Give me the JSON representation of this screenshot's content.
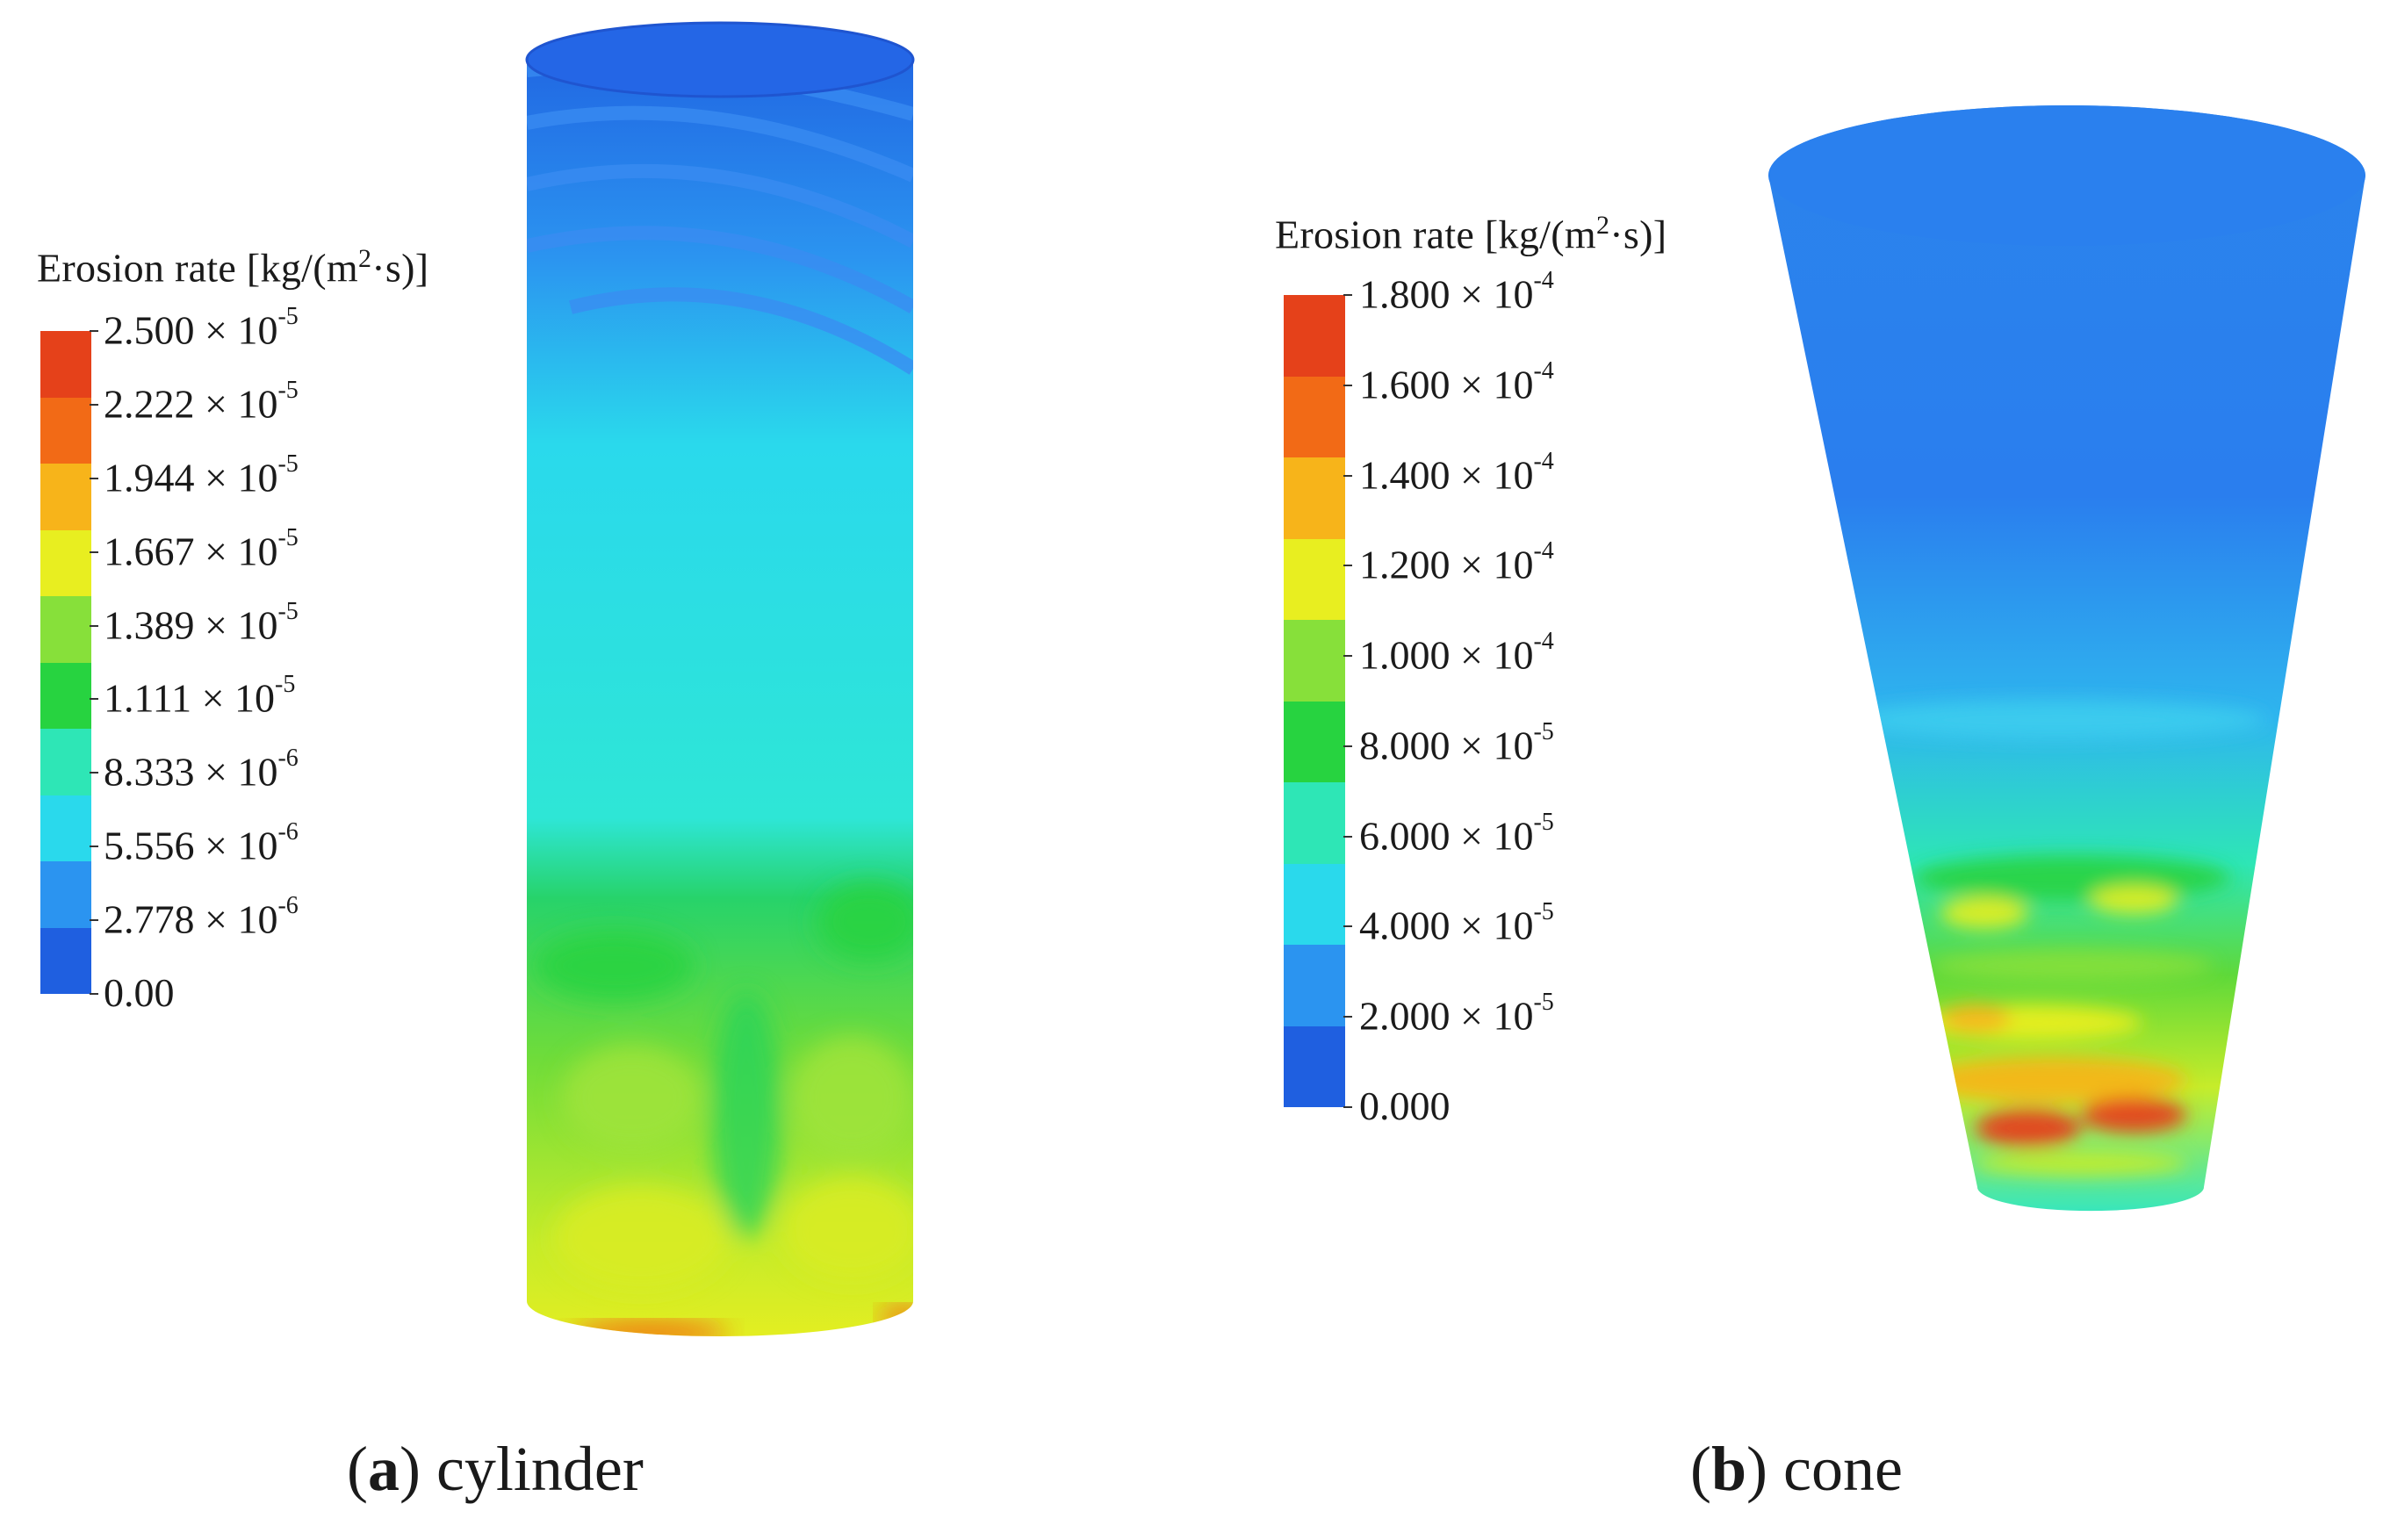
{
  "panels": [
    {
      "id": "a",
      "caption_letter": "a",
      "caption_text": "cylinder",
      "legend": {
        "title": "Erosion rate [kg/(m²·s)]",
        "ticks": [
          "2.500 × 10-5",
          "2.222 × 10-5",
          "1.944 × 10-5",
          "1.667 × 10-5",
          "1.389 × 10-5",
          "1.111 × 10-5",
          "8.333 × 10-6",
          "5.556 × 10-6",
          "2.778 × 10-6",
          "0.00"
        ],
        "tick_mantissas": [
          "2.500",
          "2.222",
          "1.944",
          "1.667",
          "1.389",
          "1.111",
          "8.333",
          "5.556",
          "2.778",
          "0.00"
        ],
        "tick_exponents": [
          "-5",
          "-5",
          "-5",
          "-5",
          "-5",
          "-5",
          "-6",
          "-6",
          "-6",
          ""
        ]
      }
    },
    {
      "id": "b",
      "caption_letter": "b",
      "caption_text": "cone",
      "legend": {
        "title": "Erosion rate [kg/(m²·s)]",
        "ticks": [
          "1.800 × 10-4",
          "1.600 × 10-4",
          "1.400 × 10-4",
          "1.200 × 10-4",
          "1.000 × 10-4",
          "8.000 × 10-5",
          "6.000 × 10-5",
          "4.000 × 10-5",
          "2.000 × 10-5",
          "0.000"
        ],
        "tick_mantissas": [
          "1.800",
          "1.600",
          "1.400",
          "1.200",
          "1.000",
          "8.000",
          "6.000",
          "4.000",
          "2.000",
          "0.000"
        ],
        "tick_exponents": [
          "-4",
          "-4",
          "-4",
          "-4",
          "-4",
          "-5",
          "-5",
          "-5",
          "-5",
          ""
        ]
      }
    }
  ],
  "colormap": [
    "#1f5fe0",
    "#2b94f0",
    "#2ad9ec",
    "#2ee6b6",
    "#27d340",
    "#87e03a",
    "#e8ee20",
    "#f7b41a",
    "#f26a16",
    "#e5411a"
  ]
}
